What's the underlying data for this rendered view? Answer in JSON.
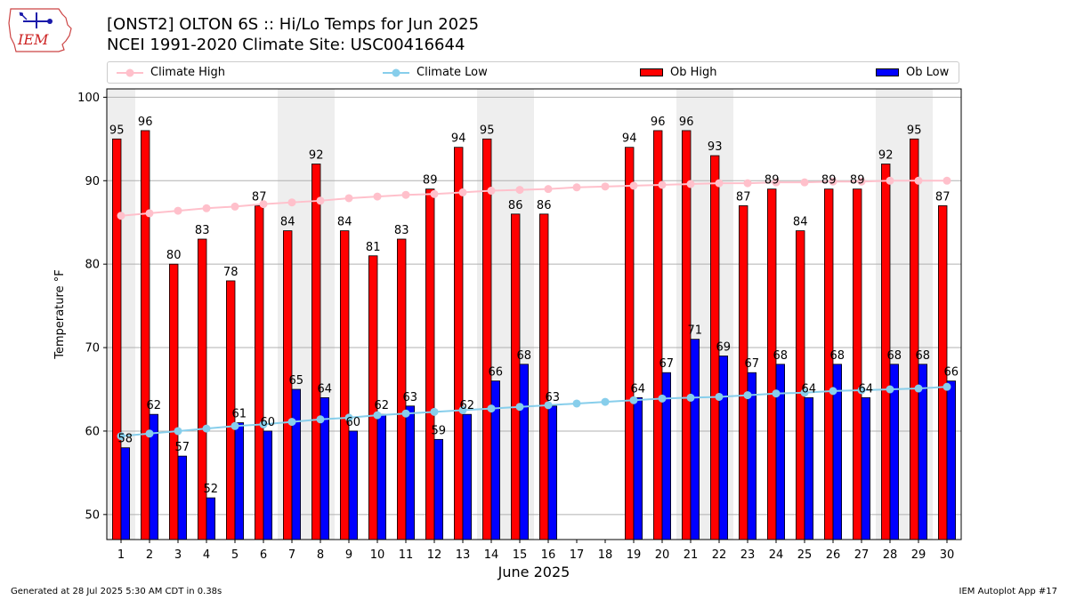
{
  "header": {
    "logo_text": "IEM",
    "title_line1": "[ONST2] OLTON 6S :: Hi/Lo Temps for Jun 2025",
    "title_line2": "NCEI 1991-2020 Climate Site: USC00416644"
  },
  "legend": {
    "climate_high": "Climate High",
    "climate_low": "Climate Low",
    "ob_high": "Ob High",
    "ob_low": "Ob Low"
  },
  "footer": {
    "generated": "Generated at 28 Jul 2025 5:30 AM CDT in 0.38s",
    "app": "IEM Autoplot App #17"
  },
  "colors": {
    "ob_high": "#ff0000",
    "ob_low": "#0000ff",
    "climate_high": "#ffc0cb",
    "climate_low": "#87ceeb",
    "weekend_shade": "#eeeeee"
  },
  "chart_data": {
    "type": "bar",
    "title": "[ONST2] OLTON 6S :: Hi/Lo Temps for Jun 2025",
    "subtitle": "NCEI 1991-2020 Climate Site: USC00416644",
    "xlabel": "June 2025",
    "ylabel": "Temperature °F",
    "ylim": [
      47,
      101
    ],
    "yticks": [
      50,
      60,
      70,
      80,
      90,
      100
    ],
    "grid": true,
    "legend_position": "top",
    "categories": [
      "1",
      "2",
      "3",
      "4",
      "5",
      "6",
      "7",
      "8",
      "9",
      "10",
      "11",
      "12",
      "13",
      "14",
      "15",
      "16",
      "17",
      "18",
      "19",
      "20",
      "21",
      "22",
      "23",
      "24",
      "25",
      "26",
      "27",
      "28",
      "29",
      "30"
    ],
    "weekend_days": [
      1,
      7,
      8,
      14,
      15,
      21,
      22,
      28,
      29
    ],
    "series": [
      {
        "name": "Ob High",
        "kind": "bar",
        "values": [
          95,
          96,
          80,
          83,
          78,
          87,
          84,
          92,
          84,
          81,
          83,
          89,
          94,
          95,
          86,
          86,
          null,
          null,
          94,
          96,
          96,
          93,
          87,
          89,
          84,
          89,
          89,
          92,
          95,
          87
        ]
      },
      {
        "name": "Ob Low",
        "kind": "bar",
        "values": [
          58,
          62,
          57,
          52,
          61,
          60,
          65,
          64,
          60,
          62,
          63,
          59,
          62,
          66,
          68,
          63,
          null,
          null,
          64,
          67,
          71,
          69,
          67,
          68,
          64,
          68,
          64,
          68,
          68,
          66
        ]
      },
      {
        "name": "Climate High",
        "kind": "line",
        "values": [
          85.8,
          86.1,
          86.4,
          86.7,
          86.9,
          87.2,
          87.4,
          87.6,
          87.9,
          88.1,
          88.3,
          88.4,
          88.6,
          88.8,
          88.9,
          89.0,
          89.2,
          89.3,
          89.4,
          89.5,
          89.6,
          89.7,
          89.7,
          89.8,
          89.8,
          89.9,
          89.9,
          90.0,
          90.0,
          90.0
        ]
      },
      {
        "name": "Climate Low",
        "kind": "line",
        "values": [
          59.4,
          59.7,
          60.0,
          60.3,
          60.6,
          60.8,
          61.1,
          61.4,
          61.6,
          61.9,
          62.1,
          62.3,
          62.5,
          62.7,
          62.9,
          63.1,
          63.3,
          63.5,
          63.7,
          63.9,
          64.0,
          64.1,
          64.3,
          64.5,
          64.6,
          64.8,
          64.9,
          65.0,
          65.1,
          65.3
        ]
      }
    ]
  }
}
